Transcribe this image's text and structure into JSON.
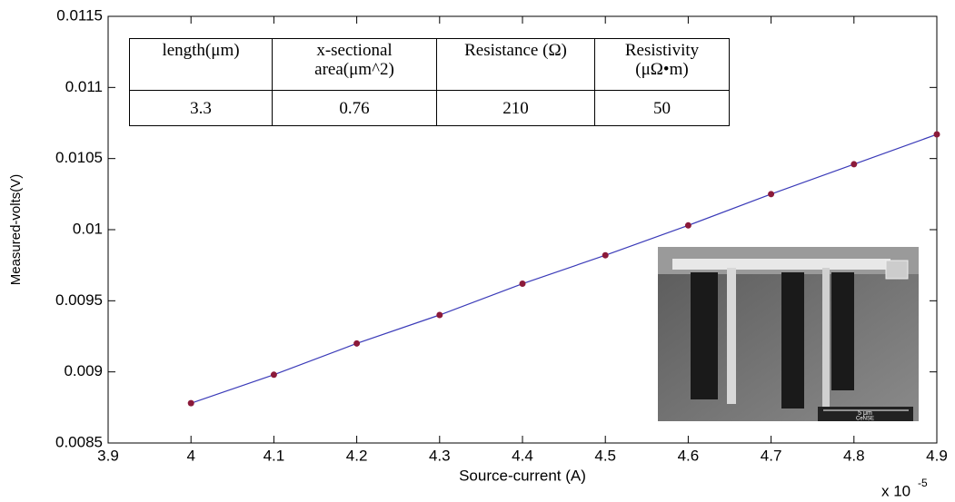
{
  "chart_data": {
    "type": "line",
    "x_label": "Source-current (A)",
    "y_label": "Measured-volts(V)",
    "x_multiplier": {
      "base": "x 10",
      "exponent": "-5"
    },
    "x": [
      4,
      4.1,
      4.2,
      4.3,
      4.4,
      4.5,
      4.6,
      4.7,
      4.8,
      4.9
    ],
    "values": [
      0.00878,
      0.00898,
      0.0092,
      0.0094,
      0.00962,
      0.00982,
      0.01003,
      0.01025,
      0.01046,
      0.01067
    ],
    "line_color": "#3a3ab8",
    "marker_color": "#8b1a3a",
    "xlim": [
      3.9,
      4.9
    ],
    "xticks": [
      3.9,
      4,
      4.1,
      4.2,
      4.3,
      4.4,
      4.5,
      4.6,
      4.7,
      4.8,
      4.9
    ],
    "ylim": [
      0.0085,
      0.0115
    ],
    "yticks": [
      0.0085,
      0.009,
      0.0095,
      0.01,
      0.0105,
      0.011,
      0.0115
    ],
    "grid": false
  },
  "table": {
    "header": [
      "length(μm)",
      "x-sectional area(μm^2)",
      "Resistance (Ω)",
      "Resistivity (μΩ•m)"
    ],
    "rows": [
      [
        "3.3",
        "0.76",
        "210",
        "50"
      ]
    ]
  },
  "image": {
    "scale_bar": "5 μm",
    "caption": "CeNSE"
  }
}
